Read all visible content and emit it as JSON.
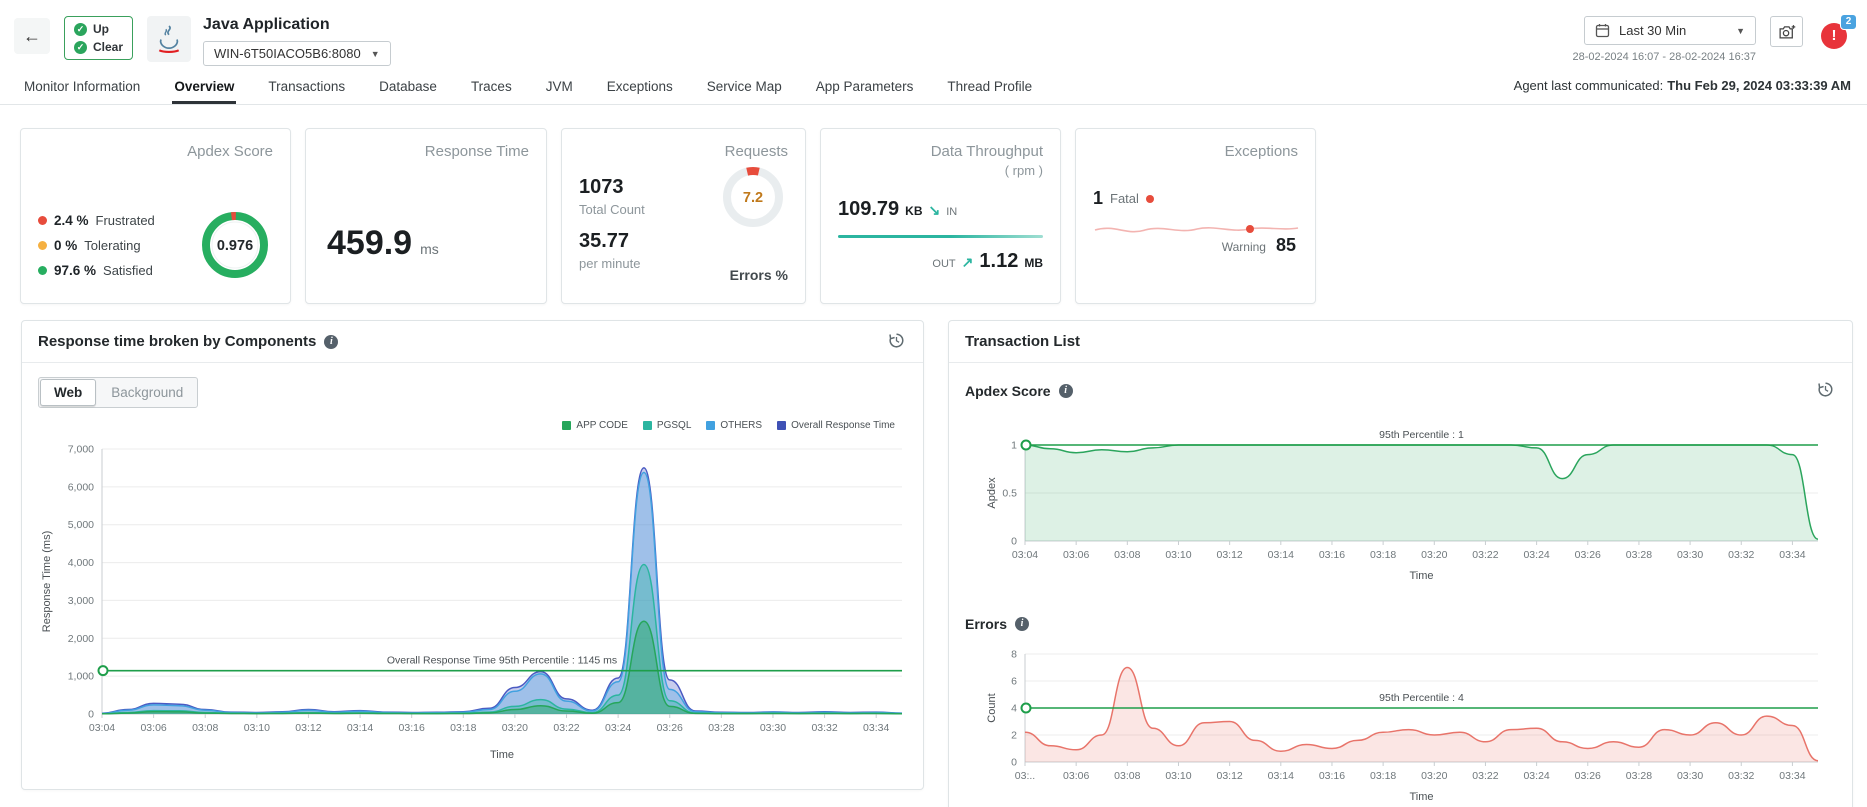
{
  "header": {
    "back": "←",
    "status_up": "Up",
    "status_clear": "Clear",
    "title": "Java Application",
    "host": "WIN-6T50IACO5B6:8080",
    "time_range": "Last 30 Min",
    "date_range": "28-02-2024 16:07 - 28-02-2024 16:37",
    "alert_symbol": "!",
    "alert_count": "2"
  },
  "tabs": {
    "items": [
      "Monitor Information",
      "Overview",
      "Transactions",
      "Database",
      "Traces",
      "JVM",
      "Exceptions",
      "Service Map",
      "App Parameters",
      "Thread Profile"
    ],
    "active": "Overview",
    "agent_label": "Agent last communicated:",
    "agent_value": "Thu Feb 29, 2024 03:33:39 AM"
  },
  "kpis": {
    "apdex": {
      "title": "Apdex Score",
      "rows": [
        {
          "value": "2.4 %",
          "label": "Frustrated",
          "color": "#e74c3c"
        },
        {
          "value": "0 %",
          "label": "Tolerating",
          "color": "#f5b041"
        },
        {
          "value": "97.6 %",
          "label": "Satisfied",
          "color": "#27ae60"
        }
      ],
      "frustrated_pct": 2.4,
      "score": "0.976",
      "ring_color": "#27ae60",
      "arc_color": "#e74c3c"
    },
    "response_time": {
      "title": "Response Time",
      "value": "459.9",
      "unit": "ms"
    },
    "requests": {
      "title": "Requests",
      "total": "1073",
      "total_label": "Total Count",
      "rate": "35.77",
      "rate_label": "per minute",
      "error_pct": "7.2",
      "error_pct_value": 7.2,
      "error_label": "Errors %"
    },
    "throughput": {
      "title": "Data Throughput",
      "subtitle": "( rpm )",
      "in_value": "109.79",
      "in_unit": "KB",
      "in_label": "IN",
      "out_label": "OUT",
      "out_value": "1.12",
      "out_unit": "MB",
      "accent": "#2bb5a0"
    },
    "exceptions": {
      "title": "Exceptions",
      "fatal_value": "1",
      "fatal_label": "Fatal",
      "warning_label": "Warning",
      "warning_value": "85"
    }
  },
  "components_panel": {
    "title": "Response time broken by Components",
    "toggle_web": "Web",
    "toggle_background": "Background",
    "toggle_active": "Web",
    "legend": [
      {
        "label": "APP CODE",
        "color": "#26a65b"
      },
      {
        "label": "PGSQL",
        "color": "#2bb5a0"
      },
      {
        "label": "OTHERS",
        "color": "#41a1e0"
      },
      {
        "label": "Overall Response Time",
        "color": "#3f51b5"
      }
    ]
  },
  "transactions_panel": {
    "title": "Transaction List",
    "apdex_title": "Apdex Score",
    "errors_title": "Errors"
  },
  "chart_data": [
    {
      "id": "components",
      "type": "area",
      "title": "Response time broken by Components (Web)",
      "xlabel": "Time",
      "ylabel": "Response Time (ms)",
      "ylim": [
        0,
        7000
      ],
      "yticks": [
        {
          "v": 0,
          "label": "0"
        },
        {
          "v": 1000,
          "label": "1,000"
        },
        {
          "v": 2000,
          "label": "2,000"
        },
        {
          "v": 3000,
          "label": "3,000"
        },
        {
          "v": 4000,
          "label": "4,000"
        },
        {
          "v": 5000,
          "label": "5,000"
        },
        {
          "v": 6000,
          "label": "6,000"
        },
        {
          "v": 7000,
          "label": "7,000"
        }
      ],
      "x_ticks": [
        "03:04",
        "03:06",
        "03:08",
        "03:10",
        "03:12",
        "03:14",
        "03:16",
        "03:18",
        "03:20",
        "03:22",
        "03:24",
        "03:26",
        "03:28",
        "03:30",
        "03:32",
        "03:34"
      ],
      "points_per_tick": 2,
      "series": [
        {
          "name": "Overall Response Time",
          "color": "#4a5ac2",
          "fill_opacity": 0.3,
          "values": [
            20,
            120,
            280,
            260,
            120,
            50,
            40,
            60,
            120,
            60,
            90,
            50,
            40,
            45,
            60,
            150,
            700,
            1120,
            400,
            100,
            950,
            6500,
            900,
            80,
            45,
            40,
            55,
            40,
            60,
            40,
            50,
            25
          ]
        },
        {
          "name": "OTHERS",
          "color": "#41a1e0",
          "fill_opacity": 0.3,
          "values": [
            15,
            100,
            240,
            220,
            100,
            40,
            30,
            45,
            100,
            45,
            75,
            40,
            30,
            35,
            45,
            120,
            600,
            1060,
            340,
            80,
            850,
            6380,
            650,
            60,
            35,
            30,
            45,
            30,
            45,
            30,
            40,
            20
          ]
        },
        {
          "name": "PGSQL",
          "color": "#2bb5a0",
          "fill_opacity": 0.35,
          "values": [
            8,
            40,
            90,
            85,
            40,
            20,
            15,
            20,
            40,
            20,
            30,
            20,
            15,
            15,
            20,
            50,
            200,
            380,
            130,
            35,
            500,
            3950,
            350,
            25,
            15,
            15,
            20,
            15,
            20,
            15,
            20,
            10
          ]
        },
        {
          "name": "APP CODE",
          "color": "#26a65b",
          "fill_opacity": 0.4,
          "values": [
            5,
            25,
            60,
            55,
            25,
            12,
            10,
            12,
            25,
            12,
            20,
            12,
            10,
            10,
            12,
            30,
            120,
            220,
            80,
            20,
            300,
            2450,
            200,
            15,
            10,
            10,
            12,
            10,
            12,
            10,
            12,
            6
          ]
        }
      ],
      "percentile": {
        "value": 1145,
        "label": "Overall Response Time 95th Percentile : 1145 ms",
        "color": "#1e9e4a"
      }
    },
    {
      "id": "apdex",
      "type": "area",
      "title": "Apdex Score",
      "xlabel": "Time",
      "ylabel": "Apdex",
      "ylim": [
        0,
        1
      ],
      "yticks": [
        {
          "v": 0,
          "label": "0"
        },
        {
          "v": 0.5,
          "label": "0.5"
        },
        {
          "v": 1,
          "label": "1"
        }
      ],
      "x_ticks": [
        "03:04",
        "03:06",
        "03:08",
        "03:10",
        "03:12",
        "03:14",
        "03:16",
        "03:18",
        "03:20",
        "03:22",
        "03:24",
        "03:26",
        "03:28",
        "03:30",
        "03:32",
        "03:34"
      ],
      "points_per_tick": 2,
      "series": [
        {
          "name": "Apdex",
          "color": "#2ba55d",
          "fill_opacity": 0.16,
          "values": [
            1,
            0.96,
            0.92,
            0.95,
            0.93,
            0.97,
            1,
            1,
            1,
            1,
            1,
            1,
            1,
            1,
            1,
            1,
            1,
            1,
            1,
            1,
            0.97,
            0.65,
            0.9,
            1,
            1,
            1,
            1,
            1,
            1,
            1,
            0.9,
            0.02
          ]
        }
      ],
      "percentile": {
        "value": 1,
        "label": "95th Percentile : 1",
        "color": "#1e9e4a"
      }
    },
    {
      "id": "errors",
      "type": "area",
      "title": "Errors",
      "xlabel": "Time",
      "ylabel": "Count",
      "ylim": [
        0,
        8
      ],
      "yticks": [
        {
          "v": 0,
          "label": "0"
        },
        {
          "v": 2,
          "label": "2"
        },
        {
          "v": 4,
          "label": "4"
        },
        {
          "v": 6,
          "label": "6"
        },
        {
          "v": 8,
          "label": "8"
        }
      ],
      "x_ticks": [
        "03:..",
        "03:06",
        "03:08",
        "03:10",
        "03:12",
        "03:14",
        "03:16",
        "03:18",
        "03:20",
        "03:22",
        "03:24",
        "03:26",
        "03:28",
        "03:30",
        "03:32",
        "03:34"
      ],
      "points_per_tick": 2,
      "series": [
        {
          "name": "Errors",
          "color": "#e8746a",
          "fill_opacity": 0.18,
          "values": [
            2.2,
            1.2,
            0.9,
            2,
            7,
            2.5,
            1.2,
            2.9,
            3,
            1.6,
            0.8,
            1.3,
            1,
            1.6,
            2.2,
            2.4,
            2,
            2.2,
            1.5,
            2.4,
            2.5,
            1.5,
            1,
            1.5,
            1.1,
            2.4,
            2,
            2.9,
            2,
            3.4,
            2.7,
            0.1
          ]
        }
      ],
      "percentile": {
        "value": 4,
        "label": "95th Percentile : 4",
        "color": "#1e9e4a"
      }
    }
  ]
}
